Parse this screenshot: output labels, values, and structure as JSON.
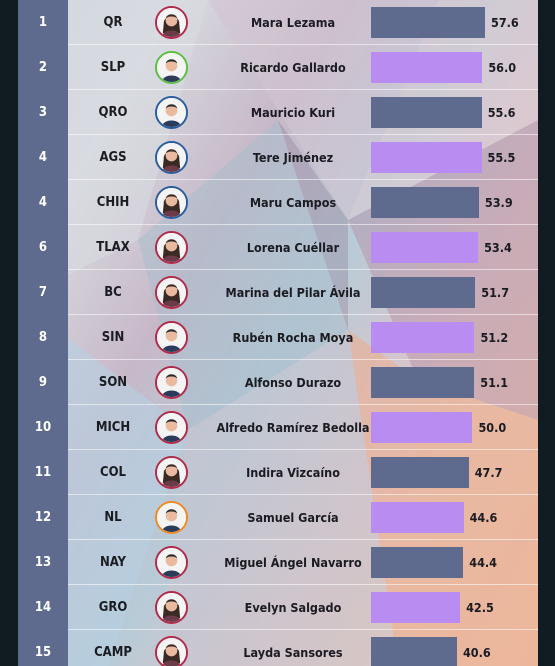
{
  "theme": {
    "bar_color_a": "#5f6a8f",
    "bar_color_b": "#b98cf2",
    "party_color_red": "#b22a4a",
    "party_color_green": "#5bbf42",
    "party_color_blue": "#2a5d9d",
    "party_color_orange": "#f08a24",
    "party_color_gray": "#8a8a8a"
  },
  "chart_data": {
    "type": "bar",
    "xlim": [
      0,
      60
    ],
    "rows": [
      {
        "rank": "1",
        "state": "QR",
        "name": "Mara Lezama",
        "value": 57.6,
        "value_label": "57.6",
        "party_color": "#b22a4a",
        "icon": "avatar-woman-icon"
      },
      {
        "rank": "2",
        "state": "SLP",
        "name": "Ricardo Gallardo",
        "value": 56.0,
        "value_label": "56.0",
        "party_color": "#5bbf42",
        "icon": "avatar-man-icon"
      },
      {
        "rank": "3",
        "state": "QRO",
        "name": "Mauricio Kuri",
        "value": 55.6,
        "value_label": "55.6",
        "party_color": "#2a5d9d",
        "icon": "avatar-man-icon"
      },
      {
        "rank": "4",
        "state": "AGS",
        "name": "Tere Jiménez",
        "value": 55.5,
        "value_label": "55.5",
        "party_color": "#2a5d9d",
        "icon": "avatar-woman-icon"
      },
      {
        "rank": "4",
        "state": "CHIH",
        "name": "Maru Campos",
        "value": 53.9,
        "value_label": "53.9",
        "party_color": "#2a5d9d",
        "icon": "avatar-woman-icon"
      },
      {
        "rank": "6",
        "state": "TLAX",
        "name": "Lorena Cuéllar",
        "value": 53.4,
        "value_label": "53.4",
        "party_color": "#b22a4a",
        "icon": "avatar-woman-icon"
      },
      {
        "rank": "7",
        "state": "BC",
        "name": "Marina del Pilar Ávila",
        "value": 51.7,
        "value_label": "51.7",
        "party_color": "#b22a4a",
        "icon": "avatar-woman-icon"
      },
      {
        "rank": "8",
        "state": "SIN",
        "name": "Rubén Rocha Moya",
        "value": 51.2,
        "value_label": "51.2",
        "party_color": "#b22a4a",
        "icon": "avatar-man-icon"
      },
      {
        "rank": "9",
        "state": "SON",
        "name": "Alfonso Durazo",
        "value": 51.1,
        "value_label": "51.1",
        "party_color": "#b22a4a",
        "icon": "avatar-man-icon"
      },
      {
        "rank": "10",
        "state": "MICH",
        "name": "Alfredo Ramírez Bedolla",
        "value": 50.0,
        "value_label": "50.0",
        "party_color": "#b22a4a",
        "icon": "avatar-man-icon"
      },
      {
        "rank": "11",
        "state": "COL",
        "name": "Indira Vizcaíno",
        "value": 47.7,
        "value_label": "47.7",
        "party_color": "#b22a4a",
        "icon": "avatar-woman-icon"
      },
      {
        "rank": "12",
        "state": "NL",
        "name": "Samuel García",
        "value": 44.6,
        "value_label": "44.6",
        "party_color": "#f08a24",
        "icon": "avatar-man-icon"
      },
      {
        "rank": "13",
        "state": "NAY",
        "name": "Miguel Ángel Navarro",
        "value": 44.4,
        "value_label": "44.4",
        "party_color": "#b22a4a",
        "icon": "avatar-man-icon"
      },
      {
        "rank": "14",
        "state": "GRO",
        "name": "Evelyn Salgado",
        "value": 42.5,
        "value_label": "42.5",
        "party_color": "#b22a4a",
        "icon": "avatar-woman-icon"
      },
      {
        "rank": "15",
        "state": "CAMP",
        "name": "Layda Sansores",
        "value": 40.6,
        "value_label": "40.6",
        "party_color": "#b22a4a",
        "icon": "avatar-woman-icon"
      }
    ]
  }
}
